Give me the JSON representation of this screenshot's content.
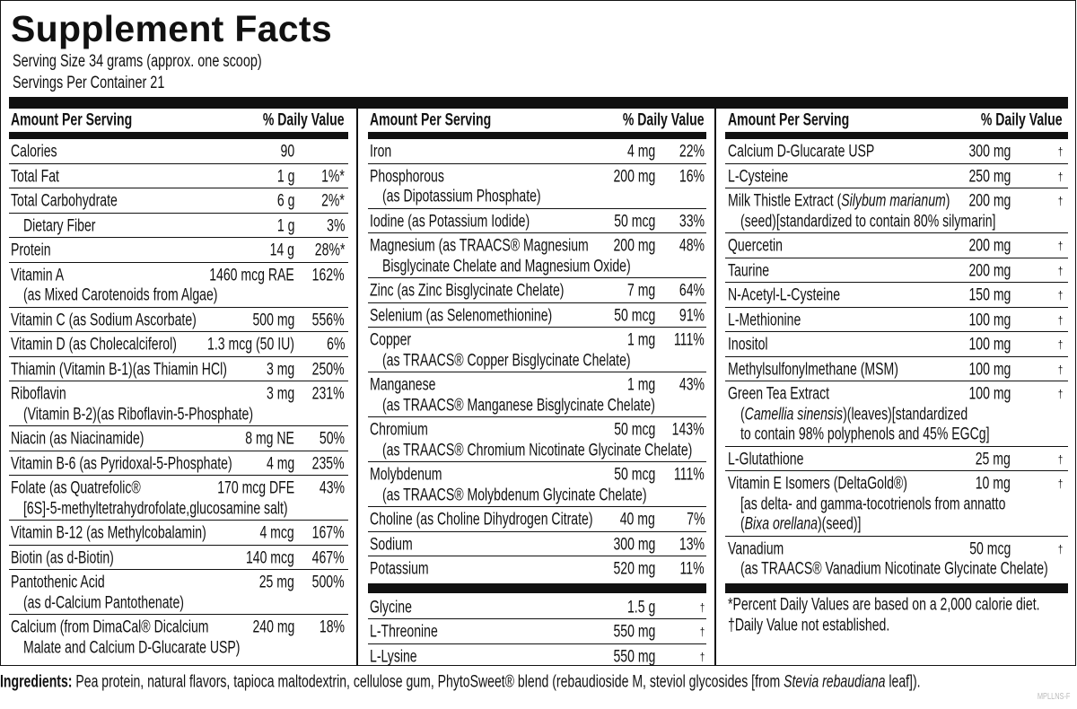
{
  "header": {
    "title": "Supplement Facts",
    "serving_size": "Serving Size 34 grams (approx. one scoop)",
    "servings_per_container": "Servings Per Container 21"
  },
  "columns": [
    {
      "amount_label": "Amount Per Serving",
      "dv_label": "% Daily Value",
      "rows": [
        {
          "name": [
            "Calories"
          ],
          "amount": "90"
        },
        {
          "name": [
            "Total Fat"
          ],
          "amount": "1 g",
          "dv": "1%*"
        },
        {
          "name": [
            "Total Carbohydrate"
          ],
          "amount": "6 g",
          "dv": "2%*"
        },
        {
          "name": [
            "Dietary Fiber"
          ],
          "amount": "1 g",
          "dv": "3%",
          "indent": true
        },
        {
          "name": [
            "Protein"
          ],
          "amount": "14 g",
          "dv": "28%*"
        },
        {
          "name": [
            "Vitamin A",
            "(as Mixed Carotenoids from Algae)"
          ],
          "amount": "1460 mcg RAE",
          "dv": "162%"
        },
        {
          "name": [
            "Vitamin C (as Sodium Ascorbate)"
          ],
          "amount": "500 mg",
          "dv": "556%"
        },
        {
          "name": [
            "Vitamin D (as Cholecalciferol)"
          ],
          "amount": "1.3 mcg (50 IU)",
          "dv": "6%"
        },
        {
          "name": [
            "Thiamin (Vitamin B-1)(as Thiamin HCl)"
          ],
          "amount": "3 mg",
          "dv": "250%"
        },
        {
          "name": [
            "Riboflavin",
            "(Vitamin B-2)(as Riboflavin-5-Phosphate)"
          ],
          "amount": "3 mg",
          "dv": "231%"
        },
        {
          "name": [
            "Niacin (as Niacinamide)"
          ],
          "amount": "8 mg NE",
          "dv": "50%"
        },
        {
          "name": [
            "Vitamin B-6 (as Pyridoxal-5-Phosphate)"
          ],
          "amount": "4 mg",
          "dv": "235%"
        },
        {
          "name": [
            "Folate (as Quatrefolic®",
            "[6S]-5-methyltetrahydrofolate,glucosamine salt)"
          ],
          "amount": "170 mcg DFE",
          "dv": "43%"
        },
        {
          "name": [
            "Vitamin B-12 (as Methylcobalamin)"
          ],
          "amount": "4 mcg",
          "dv": "167%"
        },
        {
          "name": [
            "Biotin (as d-Biotin)"
          ],
          "amount": "140 mcg",
          "dv": "467%"
        },
        {
          "name": [
            "Pantothenic Acid",
            "(as d-Calcium Pantothenate)"
          ],
          "amount": "25 mg",
          "dv": "500%"
        },
        {
          "name": [
            "Calcium (from DimaCal® Dicalcium",
            "Malate and Calcium D-Glucarate USP)"
          ],
          "amount": "240 mg",
          "dv": "18%"
        }
      ]
    },
    {
      "amount_label": "Amount Per Serving",
      "dv_label": "% Daily Value",
      "rows": [
        {
          "name": [
            "Iron"
          ],
          "amount": "4 mg",
          "dv": "22%"
        },
        {
          "name": [
            "Phosphorous",
            "(as Dipotassium Phosphate)"
          ],
          "amount": "200 mg",
          "dv": "16%"
        },
        {
          "name": [
            "Iodine (as Potassium Iodide)"
          ],
          "amount": "50 mcg",
          "dv": "33%"
        },
        {
          "name": [
            "Magnesium (as TRAACS® Magnesium",
            "Bisglycinate Chelate and Magnesium Oxide)"
          ],
          "amount": "200 mg",
          "dv": "48%"
        },
        {
          "name": [
            "Zinc (as Zinc Bisglycinate Chelate)"
          ],
          "amount": "7 mg",
          "dv": "64%"
        },
        {
          "name": [
            "Selenium (as Selenomethionine)"
          ],
          "amount": "50 mcg",
          "dv": "91%"
        },
        {
          "name": [
            "Copper",
            "(as TRAACS® Copper Bisglycinate Chelate)"
          ],
          "amount": "1 mg",
          "dv": "111%"
        },
        {
          "name": [
            "Manganese",
            "(as TRAACS® Manganese Bisglycinate Chelate)"
          ],
          "amount": "1 mg",
          "dv": "43%"
        },
        {
          "name": [
            "Chromium",
            "(as TRAACS® Chromium Nicotinate Glycinate Chelate)"
          ],
          "amount": "50 mcg",
          "dv": "143%"
        },
        {
          "name": [
            "Molybdenum",
            "(as TRAACS® Molybdenum Glycinate Chelate)"
          ],
          "amount": "50 mcg",
          "dv": "111%"
        },
        {
          "name": [
            "Choline (as Choline Dihydrogen Citrate)"
          ],
          "amount": "40 mg",
          "dv": "7%"
        },
        {
          "name": [
            "Sodium"
          ],
          "amount": "300 mg",
          "dv": "13%"
        },
        {
          "name": [
            "Potassium"
          ],
          "amount": "520 mg",
          "dv": "11%"
        },
        {
          "name": [
            "Glycine"
          ],
          "amount": "1.5 g",
          "dv": "†",
          "rule_before": true
        },
        {
          "name": [
            "L-Threonine"
          ],
          "amount": "550 mg",
          "dv": "†"
        },
        {
          "name": [
            "L-Lysine"
          ],
          "amount": "550 mg",
          "dv": "†"
        }
      ]
    },
    {
      "amount_label": "Amount Per Serving",
      "dv_label": "% Daily Value",
      "rows": [
        {
          "name": [
            "Calcium D-Glucarate USP"
          ],
          "amount": "300 mg",
          "dv": "†"
        },
        {
          "name": [
            "L-Cysteine"
          ],
          "amount": "250 mg",
          "dv": "†"
        },
        {
          "name": [
            [
              {
                "text": "Milk Thistle Extract ("
              },
              {
                "text": "Silybum marianum",
                "italic": true
              },
              {
                "text": ")"
              }
            ],
            "(seed)[standardized to contain 80% silymarin]"
          ],
          "amount": "200 mg",
          "dv": "†"
        },
        {
          "name": [
            "Quercetin"
          ],
          "amount": "200 mg",
          "dv": "†"
        },
        {
          "name": [
            "Taurine"
          ],
          "amount": "200 mg",
          "dv": "†"
        },
        {
          "name": [
            "N-Acetyl-L-Cysteine"
          ],
          "amount": "150 mg",
          "dv": "†"
        },
        {
          "name": [
            "L-Methionine"
          ],
          "amount": "100 mg",
          "dv": "†"
        },
        {
          "name": [
            "Inositol"
          ],
          "amount": "100 mg",
          "dv": "†"
        },
        {
          "name": [
            "Methylsulfonylmethane (MSM)"
          ],
          "amount": "100 mg",
          "dv": "†"
        },
        {
          "name": [
            "Green Tea Extract",
            [
              {
                "text": "("
              },
              {
                "text": "Camellia sinensis",
                "italic": true
              },
              {
                "text": ")(leaves)[standardized"
              }
            ],
            "to contain 98% polyphenols and 45% EGCg]"
          ],
          "amount": "100 mg",
          "dv": "†"
        },
        {
          "name": [
            "L-Glutathione"
          ],
          "amount": "25 mg",
          "dv": "†"
        },
        {
          "name": [
            "Vitamin E Isomers (DeltaGold®)",
            "[as delta- and gamma-tocotrienols from annatto",
            [
              {
                "text": "("
              },
              {
                "text": "Bixa orellana",
                "italic": true
              },
              {
                "text": ")(seed)]"
              }
            ]
          ],
          "amount": "10 mg",
          "dv": "†"
        },
        {
          "name": [
            "Vanadium",
            "(as TRAACS® Vanadium Nicotinate Glycinate Chelate)"
          ],
          "amount": "50 mcg",
          "dv": "†"
        }
      ]
    }
  ],
  "footnotes": [
    "*Percent Daily Values are based on a 2,000 calorie diet.",
    "†Daily Value not established."
  ],
  "ingredients": {
    "label": "Ingredients:",
    "text": [
      {
        "text": " Pea protein, natural flavors, tapioca maltodextrin, cellulose gum, PhytoSweet® blend (rebaudioside M, steviol glycosides [from "
      },
      {
        "text": "Stevia rebaudiana",
        "italic": true
      },
      {
        "text": " leaf])."
      }
    ]
  },
  "code": "MPLLNS-F"
}
